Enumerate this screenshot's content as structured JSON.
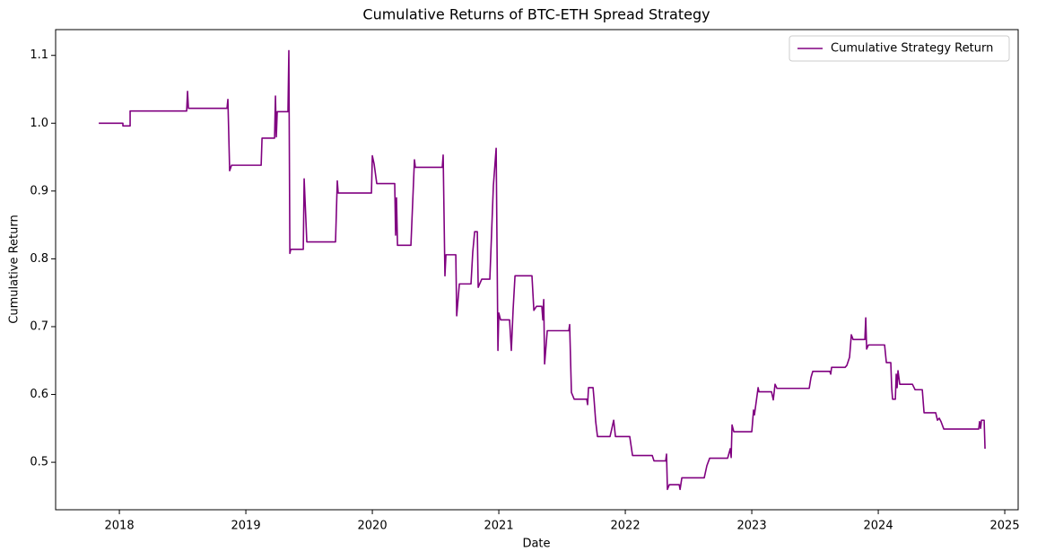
{
  "chart_data": {
    "type": "line",
    "title": "Cumulative Returns of BTC-ETH Spread Strategy",
    "x_label": "Date",
    "y_label": "Cumulative Return",
    "x": [
      2017.837,
      2018.028,
      2018.028,
      2018.085,
      2018.085,
      2018.532,
      2018.539,
      2018.546,
      2018.851,
      2018.858,
      2018.872,
      2018.887,
      2019.121,
      2019.128,
      2019.227,
      2019.234,
      2019.241,
      2019.248,
      2019.333,
      2019.34,
      2019.348,
      2019.355,
      2019.454,
      2019.461,
      2019.482,
      2019.709,
      2019.723,
      2019.73,
      2019.993,
      2020,
      2020.014,
      2020.035,
      2020.177,
      2020.184,
      2020.191,
      2020.199,
      2020.305,
      2020.333,
      2020.34,
      2020.553,
      2020.56,
      2020.574,
      2020.582,
      2020.66,
      2020.667,
      2020.688,
      2020.78,
      2020.794,
      2020.809,
      2020.83,
      2020.837,
      2020.865,
      2020.929,
      2020.957,
      2020.979,
      2020.993,
      2021,
      2021.014,
      2021.085,
      2021.099,
      2021.113,
      2021.128,
      2021.262,
      2021.277,
      2021.298,
      2021.34,
      2021.348,
      2021.355,
      2021.362,
      2021.383,
      2021.553,
      2021.56,
      2021.574,
      2021.596,
      2021.695,
      2021.702,
      2021.709,
      2021.745,
      2021.752,
      2021.766,
      2021.78,
      2021.879,
      2021.894,
      2021.908,
      2021.922,
      2022.035,
      2022.057,
      2022.213,
      2022.227,
      2022.319,
      2022.326,
      2022.333,
      2022.348,
      2022.426,
      2022.433,
      2022.447,
      2022.624,
      2022.645,
      2022.667,
      2022.809,
      2022.83,
      2022.837,
      2022.844,
      2022.858,
      2023,
      2023.014,
      2023.021,
      2023.05,
      2023.057,
      2023.156,
      2023.17,
      2023.184,
      2023.199,
      2023.454,
      2023.468,
      2023.482,
      2023.617,
      2023.624,
      2023.631,
      2023.738,
      2023.752,
      2023.773,
      2023.787,
      2023.801,
      2023.894,
      2023.901,
      2023.908,
      2023.922,
      2024.05,
      2024.064,
      2024.099,
      2024.106,
      2024.113,
      2024.135,
      2024.142,
      2024.149,
      2024.156,
      2024.17,
      2024.27,
      2024.291,
      2024.348,
      2024.362,
      2024.454,
      2024.468,
      2024.482,
      2024.496,
      2024.518,
      2024.794,
      2024.801,
      2024.809,
      2024.816,
      2024.837,
      2024.844
    ],
    "series": [
      {
        "name": "Cumulative Strategy Return",
        "color": "#800080",
        "values": [
          1.0,
          1.0,
          0.996,
          0.996,
          1.018,
          1.018,
          1.047,
          1.022,
          1.022,
          1.035,
          0.93,
          0.938,
          0.938,
          0.978,
          0.978,
          1.04,
          0.98,
          1.017,
          1.017,
          1.107,
          0.808,
          0.814,
          0.814,
          0.918,
          0.825,
          0.825,
          0.915,
          0.897,
          0.897,
          0.952,
          0.94,
          0.911,
          0.911,
          0.835,
          0.89,
          0.82,
          0.82,
          0.946,
          0.935,
          0.935,
          0.953,
          0.775,
          0.806,
          0.806,
          0.716,
          0.763,
          0.763,
          0.81,
          0.84,
          0.84,
          0.758,
          0.77,
          0.77,
          0.908,
          0.963,
          0.665,
          0.72,
          0.71,
          0.71,
          0.665,
          0.725,
          0.775,
          0.775,
          0.724,
          0.73,
          0.73,
          0.71,
          0.74,
          0.645,
          0.694,
          0.694,
          0.703,
          0.603,
          0.593,
          0.593,
          0.585,
          0.61,
          0.61,
          0.595,
          0.56,
          0.538,
          0.538,
          0.55,
          0.562,
          0.538,
          0.538,
          0.51,
          0.51,
          0.502,
          0.502,
          0.512,
          0.46,
          0.467,
          0.467,
          0.46,
          0.477,
          0.477,
          0.495,
          0.506,
          0.506,
          0.52,
          0.507,
          0.555,
          0.545,
          0.545,
          0.577,
          0.57,
          0.61,
          0.604,
          0.604,
          0.592,
          0.615,
          0.609,
          0.609,
          0.625,
          0.634,
          0.634,
          0.63,
          0.64,
          0.64,
          0.643,
          0.655,
          0.688,
          0.681,
          0.681,
          0.713,
          0.667,
          0.673,
          0.673,
          0.647,
          0.647,
          0.61,
          0.593,
          0.593,
          0.63,
          0.61,
          0.635,
          0.615,
          0.615,
          0.607,
          0.607,
          0.573,
          0.573,
          0.562,
          0.565,
          0.56,
          0.549,
          0.549,
          0.56,
          0.55,
          0.562,
          0.562,
          0.52
        ]
      }
    ],
    "xlim": [
      2017.496,
      2025.106
    ],
    "xticks": [
      2018,
      2019,
      2020,
      2021,
      2022,
      2023,
      2024,
      2025
    ],
    "ylim": [
      0.43,
      1.138
    ],
    "yticks": [
      0.5,
      0.6,
      0.7,
      0.8,
      0.9,
      {
        "value": 1,
        "label": "1.0"
      },
      1.1
    ],
    "grid": false,
    "legend": "upper right"
  }
}
